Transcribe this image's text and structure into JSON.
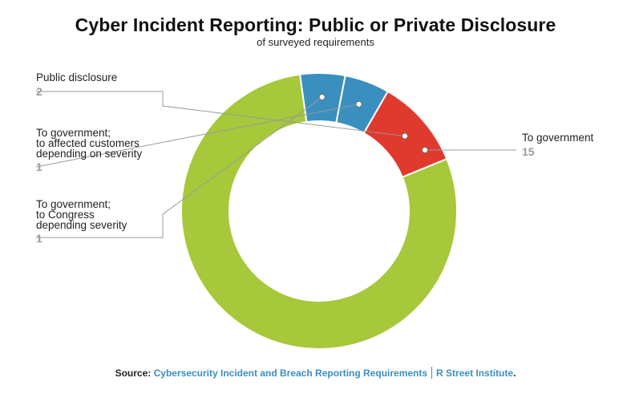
{
  "title": "Cyber Incident Reporting: Public or Private Disclosure",
  "subtitle": "of surveyed requirements",
  "chart_data": {
    "type": "pie",
    "donut": true,
    "segments": [
      {
        "label": "To government",
        "value": 15,
        "color": "#a6c83a"
      },
      {
        "label": "To government; to Congress depending severity",
        "value": 1,
        "color": "#3a8fbf"
      },
      {
        "label": "To government; to affected customers depending on severity",
        "value": 1,
        "color": "#3a8fbf"
      },
      {
        "label": "Public disclosure",
        "value": 2,
        "color": "#e03a2e"
      }
    ],
    "label_lines": {
      "public": [
        "Public disclosure"
      ],
      "customers": [
        "To government;",
        "to affected customers",
        "depending on severity"
      ],
      "congress": [
        "To government;",
        "to Congress",
        "depending severity"
      ],
      "government": [
        "To government"
      ]
    },
    "value_labels": {
      "public": "2",
      "customers": "1",
      "congress": "1",
      "government": "15"
    }
  },
  "source": {
    "prefix": "Source:",
    "link_text": "Cybersecurity Incident and Breach Reporting Requirements",
    "publisher": "R Street Institute",
    "suffix": "."
  }
}
